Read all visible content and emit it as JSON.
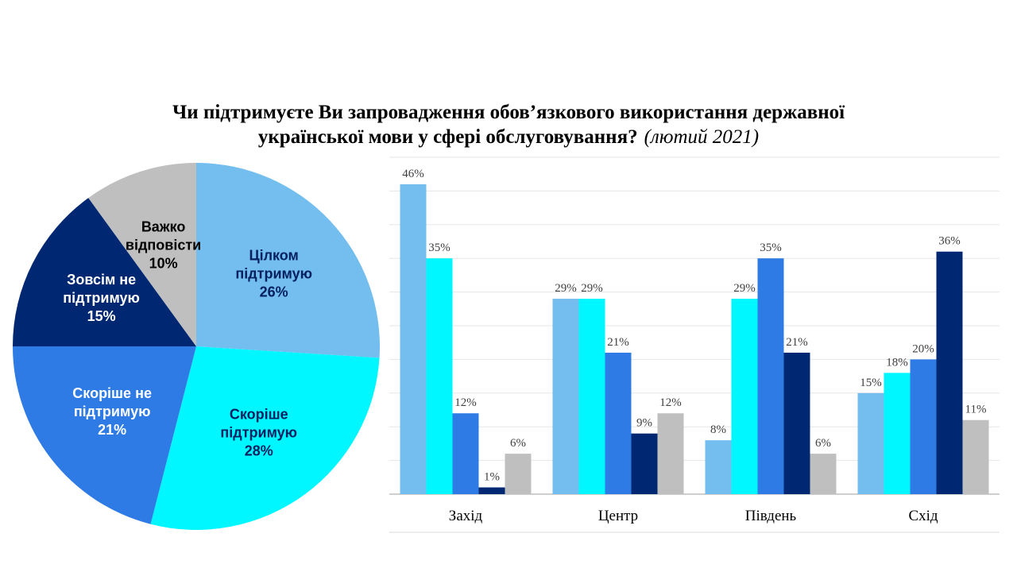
{
  "title": {
    "line1": "Чи підтримуєте Ви запровадження обов’язкового використання державної",
    "line2": "української мови у сфері обслуговування?",
    "subtitle": "(лютий 2021)"
  },
  "chart_data": [
    {
      "type": "pie",
      "slices": [
        {
          "label": [
            "Цілком",
            "підтримую"
          ],
          "value": 26,
          "value_label": "26%",
          "color": "#73BEEF",
          "text_color": "#002060"
        },
        {
          "label": [
            "Скоріше",
            "підтримую"
          ],
          "value": 28,
          "value_label": "28%",
          "color": "#00F7FF",
          "text_color": "#002060"
        },
        {
          "label": [
            "Скоріше не",
            "підтримую"
          ],
          "value": 21,
          "value_label": "21%",
          "color": "#2E7BE6",
          "text_color": "#FFFFFF"
        },
        {
          "label": [
            "Зовсім не",
            "підтримую"
          ],
          "value": 15,
          "value_label": "15%",
          "color": "#002772",
          "text_color": "#FFFFFF"
        },
        {
          "label": [
            "Важко",
            "відповісти"
          ],
          "value": 10,
          "value_label": "10%",
          "color": "#BFBFBF",
          "text_color": "#000000"
        }
      ]
    },
    {
      "type": "bar",
      "categories": [
        "Захід",
        "Центр",
        "Південь",
        "Схід"
      ],
      "series": [
        {
          "values": [
            46,
            29,
            8,
            15
          ],
          "labels": [
            "46%",
            "29%",
            "8%",
            "15%"
          ],
          "color": "#73BEEF"
        },
        {
          "values": [
            35,
            29,
            29,
            18
          ],
          "labels": [
            "35%",
            "29%",
            "29%",
            "18%"
          ],
          "color": "#00F7FF"
        },
        {
          "values": [
            12,
            21,
            35,
            20
          ],
          "labels": [
            "12%",
            "21%",
            "35%",
            "20%"
          ],
          "color": "#2E7BE6"
        },
        {
          "values": [
            1,
            9,
            21,
            36
          ],
          "labels": [
            "1%",
            "9%",
            "21%",
            "36%"
          ],
          "color": "#002772"
        },
        {
          "values": [
            6,
            12,
            6,
            11
          ],
          "labels": [
            "6%",
            "12%",
            "6%",
            "11%"
          ],
          "color": "#BFBFBF"
        }
      ],
      "ylim": [
        0,
        50
      ],
      "grid": true
    }
  ]
}
